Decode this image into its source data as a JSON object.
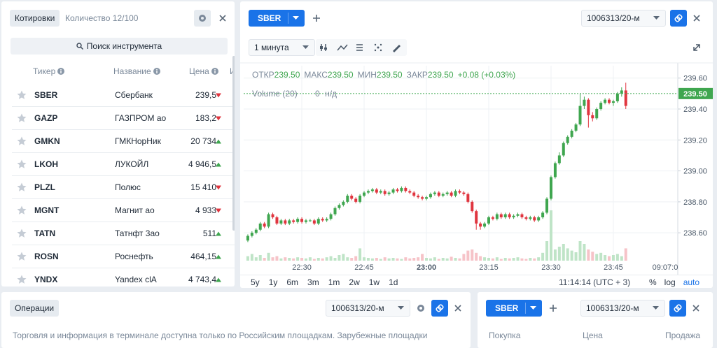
{
  "quotes": {
    "tab": "Котировки",
    "count": "Количество 12/100",
    "search": "Поиск инструмента",
    "columns": [
      "Тикер",
      "Название",
      "Цена",
      "И"
    ],
    "rows": [
      {
        "ticker": "SBER",
        "name": "Сбербанк",
        "price": "239,5",
        "trend": "down"
      },
      {
        "ticker": "GAZP",
        "name": "ГАЗПРОМ ао",
        "price": "183,2",
        "trend": "down"
      },
      {
        "ticker": "GMKN",
        "name": "ГМКНорНик",
        "price": "20 734",
        "trend": "up"
      },
      {
        "ticker": "LKOH",
        "name": "ЛУКОЙЛ",
        "price": "4 946,5",
        "trend": "up"
      },
      {
        "ticker": "PLZL",
        "name": "Полюс",
        "price": "15 410",
        "trend": "down"
      },
      {
        "ticker": "MGNT",
        "name": "Магнит ао",
        "price": "4 933",
        "trend": "down"
      },
      {
        "ticker": "TATN",
        "name": "Татнфт 3ао",
        "price": "511",
        "trend": "up"
      },
      {
        "ticker": "ROSN",
        "name": "Роснефть",
        "price": "464,15",
        "trend": "up"
      },
      {
        "ticker": "YNDX",
        "name": "Yandex clA",
        "price": "4 743,4",
        "trend": "up"
      }
    ]
  },
  "chart_panel": {
    "ticker": "SBER",
    "account": "1006313/20-м",
    "interval": "1 минута",
    "ranges": [
      "5y",
      "1y",
      "6m",
      "3m",
      "1m",
      "2w",
      "1w",
      "1d"
    ],
    "clock": "11:14:14 (UTC + 3)",
    "scale_options": [
      "%",
      "log",
      "auto"
    ]
  },
  "chart_data": {
    "type": "candlestick",
    "ohlc_legend": [
      {
        "label": "ОТКР",
        "value": "239.50"
      },
      {
        "label": "МАКС",
        "value": "239.50"
      },
      {
        "label": "МИН",
        "value": "239.50"
      },
      {
        "label": "ЗАКР",
        "value": "239.50"
      }
    ],
    "change": "+0.08 (+0.03%)",
    "volume_legend": {
      "label": "Volume (20)",
      "value": "0",
      "unit": "н/д"
    },
    "last_price": {
      "value": 239.5,
      "label": "239.50"
    },
    "up_color": "#3fa64f",
    "down_color": "#e0353f",
    "volume_up_color": "#bfe4c7",
    "volume_down_color": "#f6c3c8",
    "xlim": [
      "22:16",
      "23:59"
    ],
    "xticks": [
      "22:30",
      "22:45",
      "23:00",
      "23:15",
      "23:30",
      "23:45"
    ],
    "x_end_label": "09:07:0",
    "ylim": [
      238.42,
      239.68
    ],
    "yticks": [
      {
        "value": 238.6,
        "label": "238.60"
      },
      {
        "value": 238.8,
        "label": "238.80"
      },
      {
        "value": 239.0,
        "label": "239.00"
      },
      {
        "value": 239.2,
        "label": "239.20"
      },
      {
        "value": 239.4,
        "label": "239.40"
      },
      {
        "value": 239.6,
        "label": "239.60"
      }
    ],
    "y2lim": [
      0,
      100
    ],
    "grid": true,
    "x": [
      "22:17",
      "22:18",
      "22:19",
      "22:20",
      "22:21",
      "22:22",
      "22:23",
      "22:24",
      "22:25",
      "22:26",
      "22:27",
      "22:28",
      "22:29",
      "22:30",
      "22:31",
      "22:32",
      "22:33",
      "22:34",
      "22:35",
      "22:36",
      "22:37",
      "22:38",
      "22:39",
      "22:40",
      "22:41",
      "22:42",
      "22:43",
      "22:44",
      "22:45",
      "22:46",
      "22:47",
      "22:48",
      "22:49",
      "22:50",
      "22:51",
      "22:52",
      "22:53",
      "22:54",
      "22:55",
      "22:56",
      "22:57",
      "22:58",
      "22:59",
      "23:00",
      "23:01",
      "23:02",
      "23:03",
      "23:04",
      "23:05",
      "23:06",
      "23:07",
      "23:08",
      "23:09",
      "23:10",
      "23:11",
      "23:12",
      "23:13",
      "23:14",
      "23:15",
      "23:16",
      "23:17",
      "23:18",
      "23:19",
      "23:20",
      "23:21",
      "23:22",
      "23:23",
      "23:24",
      "23:25",
      "23:26",
      "23:27",
      "23:28",
      "23:29",
      "23:30",
      "23:31",
      "23:32",
      "23:33",
      "23:34",
      "23:35",
      "23:36",
      "23:37",
      "23:38",
      "23:39",
      "23:40",
      "23:41",
      "23:42",
      "23:43",
      "23:44",
      "23:45",
      "23:46",
      "23:47",
      "23:48"
    ],
    "ohlc": [
      [
        238.55,
        238.59,
        238.54,
        238.58
      ],
      [
        238.58,
        238.61,
        238.57,
        238.6
      ],
      [
        238.6,
        238.63,
        238.59,
        238.62
      ],
      [
        238.62,
        238.67,
        238.61,
        238.66
      ],
      [
        238.66,
        238.67,
        238.63,
        238.64
      ],
      [
        238.64,
        238.73,
        238.63,
        238.72
      ],
      [
        238.72,
        238.73,
        238.69,
        238.7
      ],
      [
        238.7,
        238.71,
        238.65,
        238.66
      ],
      [
        238.66,
        238.69,
        238.65,
        238.68
      ],
      [
        238.68,
        238.69,
        238.65,
        238.66
      ],
      [
        238.66,
        238.69,
        238.65,
        238.68
      ],
      [
        238.68,
        238.69,
        238.66,
        238.67
      ],
      [
        238.67,
        238.7,
        238.66,
        238.69
      ],
      [
        238.69,
        238.7,
        238.66,
        238.67
      ],
      [
        238.67,
        238.69,
        238.66,
        238.68
      ],
      [
        238.68,
        238.69,
        238.67,
        238.68
      ],
      [
        238.68,
        238.69,
        238.65,
        238.66
      ],
      [
        238.66,
        238.7,
        238.65,
        238.69
      ],
      [
        238.69,
        238.7,
        238.67,
        238.68
      ],
      [
        238.68,
        238.7,
        238.67,
        238.69
      ],
      [
        238.69,
        238.73,
        238.68,
        238.72
      ],
      [
        238.72,
        238.77,
        238.71,
        238.76
      ],
      [
        238.76,
        238.79,
        238.75,
        238.78
      ],
      [
        238.78,
        238.81,
        238.77,
        238.8
      ],
      [
        238.8,
        238.85,
        238.79,
        238.84
      ],
      [
        238.84,
        238.85,
        238.81,
        238.82
      ],
      [
        238.82,
        238.83,
        238.79,
        238.8
      ],
      [
        238.8,
        238.85,
        238.79,
        238.84
      ],
      [
        238.84,
        238.87,
        238.83,
        238.86
      ],
      [
        238.86,
        238.88,
        238.85,
        238.87
      ],
      [
        238.87,
        238.89,
        238.86,
        238.88
      ],
      [
        238.88,
        238.89,
        238.85,
        238.86
      ],
      [
        238.86,
        238.88,
        238.85,
        238.87
      ],
      [
        238.87,
        238.88,
        238.84,
        238.85
      ],
      [
        238.85,
        238.87,
        238.84,
        238.86
      ],
      [
        238.86,
        238.89,
        238.85,
        238.88
      ],
      [
        238.88,
        238.89,
        238.86,
        238.87
      ],
      [
        238.87,
        238.9,
        238.86,
        238.89
      ],
      [
        238.89,
        238.9,
        238.86,
        238.87
      ],
      [
        238.87,
        238.88,
        238.85,
        238.86
      ],
      [
        238.86,
        238.87,
        238.83,
        238.84
      ],
      [
        238.84,
        238.85,
        238.82,
        238.83
      ],
      [
        238.83,
        238.84,
        238.81,
        238.82
      ],
      [
        238.82,
        238.84,
        238.81,
        238.83
      ],
      [
        238.83,
        238.86,
        238.82,
        238.85
      ],
      [
        238.85,
        238.87,
        238.84,
        238.86
      ],
      [
        238.86,
        238.87,
        238.83,
        238.84
      ],
      [
        238.84,
        238.86,
        238.83,
        238.85
      ],
      [
        238.85,
        238.87,
        238.84,
        238.86
      ],
      [
        238.86,
        238.87,
        238.83,
        238.84
      ],
      [
        238.84,
        238.88,
        238.83,
        238.87
      ],
      [
        238.87,
        238.88,
        238.85,
        238.86
      ],
      [
        238.86,
        238.87,
        238.84,
        238.85
      ],
      [
        238.85,
        238.86,
        238.79,
        238.8
      ],
      [
        238.8,
        238.81,
        238.73,
        238.74
      ],
      [
        238.74,
        238.75,
        238.62,
        238.66
      ],
      [
        238.66,
        238.67,
        238.62,
        238.64
      ],
      [
        238.64,
        238.67,
        238.63,
        238.66
      ],
      [
        238.66,
        238.71,
        238.65,
        238.7
      ],
      [
        238.7,
        238.71,
        238.68,
        238.69
      ],
      [
        238.69,
        238.73,
        238.68,
        238.72
      ],
      [
        238.72,
        238.73,
        238.69,
        238.7
      ],
      [
        238.7,
        238.73,
        238.69,
        238.72
      ],
      [
        238.72,
        238.73,
        238.69,
        238.7
      ],
      [
        238.7,
        238.72,
        238.69,
        238.71
      ],
      [
        238.71,
        238.73,
        238.7,
        238.72
      ],
      [
        238.72,
        238.73,
        238.69,
        238.7
      ],
      [
        238.7,
        238.71,
        238.68,
        238.69
      ],
      [
        238.69,
        238.71,
        238.68,
        238.7
      ],
      [
        238.7,
        238.71,
        238.67,
        238.68
      ],
      [
        238.68,
        238.71,
        238.67,
        238.7
      ],
      [
        238.7,
        238.74,
        238.69,
        238.73
      ],
      [
        238.73,
        238.83,
        238.72,
        238.82
      ],
      [
        238.82,
        238.97,
        238.81,
        238.96
      ],
      [
        238.96,
        239.06,
        238.95,
        239.05
      ],
      [
        239.05,
        239.12,
        239.04,
        239.1
      ],
      [
        239.1,
        239.19,
        239.09,
        239.18
      ],
      [
        239.18,
        239.23,
        239.17,
        239.22
      ],
      [
        239.22,
        239.27,
        239.21,
        239.26
      ],
      [
        239.26,
        239.31,
        239.25,
        239.3
      ],
      [
        239.3,
        239.5,
        239.29,
        239.42
      ],
      [
        239.42,
        239.48,
        239.4,
        239.46
      ],
      [
        239.46,
        239.47,
        239.28,
        239.36
      ],
      [
        239.36,
        239.38,
        239.32,
        239.34
      ],
      [
        239.34,
        239.41,
        239.33,
        239.4
      ],
      [
        239.4,
        239.45,
        239.39,
        239.44
      ],
      [
        239.44,
        239.47,
        239.43,
        239.46
      ],
      [
        239.46,
        239.47,
        239.43,
        239.44
      ],
      [
        239.44,
        239.46,
        239.42,
        239.45
      ],
      [
        239.45,
        239.51,
        239.44,
        239.5
      ],
      [
        239.5,
        239.54,
        239.48,
        239.52
      ],
      [
        239.52,
        239.57,
        239.4,
        239.42
      ]
    ],
    "volume": [
      8,
      12,
      6,
      10,
      5,
      14,
      6,
      8,
      4,
      6,
      5,
      4,
      6,
      5,
      4,
      6,
      3,
      5,
      4,
      6,
      8,
      5,
      10,
      12,
      6,
      5,
      8,
      22,
      6,
      5,
      4,
      5,
      3,
      6,
      4,
      5,
      4,
      3,
      6,
      4,
      5,
      6,
      12,
      5,
      4,
      6,
      3,
      5,
      4,
      7,
      5,
      4,
      12,
      18,
      20,
      14,
      8,
      6,
      5,
      4,
      6,
      3,
      5,
      4,
      5,
      6,
      4,
      3,
      5,
      4,
      6,
      14,
      35,
      90,
      20,
      25,
      30,
      22,
      18,
      15,
      35,
      30,
      20,
      16,
      12,
      14,
      10,
      8,
      10,
      12,
      8,
      22
    ]
  },
  "operations": {
    "tab": "Операции",
    "account": "1006313/20-м",
    "notice": "Торговля и информация в терминале доступна только по Российским площадкам. Зарубежные площадки"
  },
  "order_book": {
    "ticker": "SBER",
    "account": "1006313/20-м",
    "columns": [
      "Покупка",
      "Цена",
      "Продажа"
    ]
  }
}
